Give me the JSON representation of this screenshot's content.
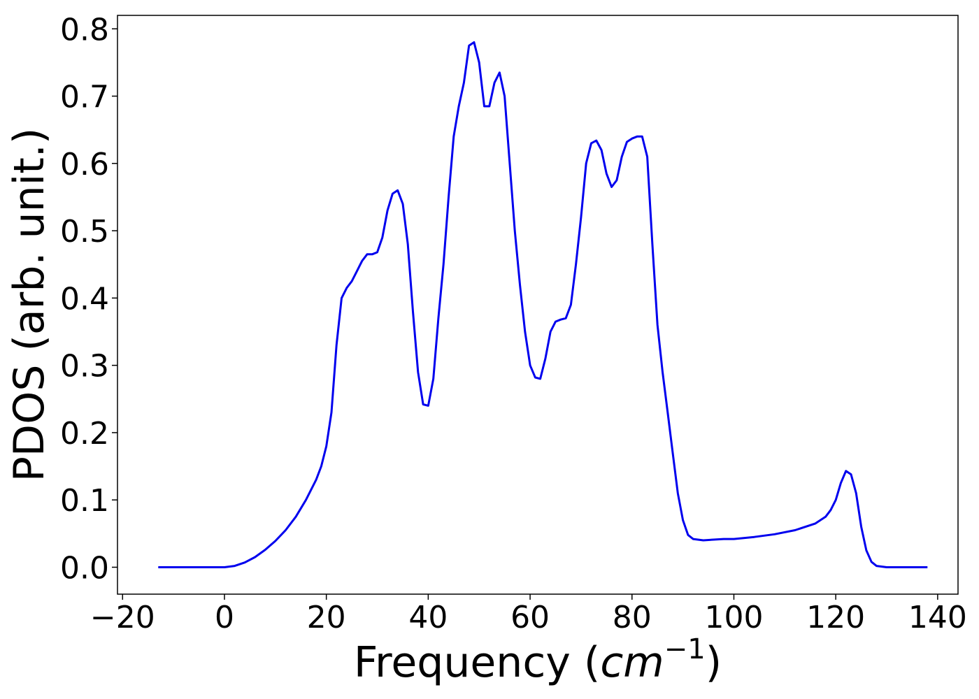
{
  "chart_data": {
    "type": "line",
    "title": "",
    "xlabel": "Frequency (",
    "xlabel_math": "cm",
    "xlabel_exponent": "−1",
    "xlabel_close": ")",
    "ylabel": "PDOS (arb. unit.)",
    "xlim": [
      -21,
      144
    ],
    "ylim": [
      -0.04,
      0.82
    ],
    "xticks": [
      -20,
      0,
      20,
      40,
      60,
      80,
      100,
      120,
      140
    ],
    "xtick_labels": [
      "−20",
      "0",
      "20",
      "40",
      "60",
      "80",
      "100",
      "120",
      "140"
    ],
    "yticks": [
      0.0,
      0.1,
      0.2,
      0.3,
      0.4,
      0.5,
      0.6,
      0.7,
      0.8
    ],
    "ytick_labels": [
      "0.0",
      "0.1",
      "0.2",
      "0.3",
      "0.4",
      "0.5",
      "0.6",
      "0.7",
      "0.8"
    ],
    "grid": false,
    "legend": "none",
    "line_color": "#0000ee",
    "series": [
      {
        "x": [
          -13,
          -5,
          0,
          2,
          4,
          6,
          8,
          10,
          12,
          14,
          16,
          18,
          19,
          20,
          21,
          22,
          23,
          24,
          25,
          26,
          27,
          28,
          29,
          30,
          31,
          32,
          33,
          34,
          35,
          36,
          37,
          38,
          39,
          40,
          41,
          42,
          43,
          44,
          45,
          46,
          47,
          48,
          49,
          50,
          51,
          52,
          53,
          54,
          55,
          56,
          57,
          58,
          59,
          60,
          61,
          62,
          63,
          64,
          65,
          66,
          67,
          68,
          69,
          70,
          71,
          72,
          73,
          74,
          75,
          76,
          77,
          78,
          79,
          80,
          81,
          82,
          83,
          84,
          85,
          86,
          87,
          88,
          89,
          90,
          91,
          92,
          94,
          96,
          98,
          100,
          104,
          108,
          112,
          116,
          118,
          119,
          120,
          121,
          122,
          123,
          124,
          125,
          126,
          127,
          128,
          130,
          138
        ],
        "y": [
          0.0,
          0.0,
          0.0,
          0.002,
          0.007,
          0.015,
          0.026,
          0.039,
          0.055,
          0.075,
          0.1,
          0.13,
          0.15,
          0.18,
          0.23,
          0.33,
          0.4,
          0.415,
          0.425,
          0.44,
          0.455,
          0.465,
          0.465,
          0.468,
          0.49,
          0.53,
          0.555,
          0.56,
          0.54,
          0.48,
          0.38,
          0.29,
          0.242,
          0.24,
          0.28,
          0.37,
          0.45,
          0.55,
          0.64,
          0.685,
          0.72,
          0.775,
          0.78,
          0.75,
          0.685,
          0.685,
          0.72,
          0.735,
          0.7,
          0.6,
          0.5,
          0.42,
          0.35,
          0.3,
          0.282,
          0.28,
          0.31,
          0.35,
          0.365,
          0.368,
          0.37,
          0.39,
          0.45,
          0.52,
          0.6,
          0.63,
          0.634,
          0.62,
          0.585,
          0.565,
          0.575,
          0.61,
          0.632,
          0.637,
          0.64,
          0.64,
          0.61,
          0.48,
          0.36,
          0.29,
          0.23,
          0.17,
          0.11,
          0.07,
          0.048,
          0.042,
          0.04,
          0.041,
          0.042,
          0.042,
          0.045,
          0.049,
          0.055,
          0.065,
          0.075,
          0.085,
          0.1,
          0.125,
          0.143,
          0.138,
          0.11,
          0.06,
          0.025,
          0.008,
          0.002,
          0.0,
          0.0
        ]
      }
    ]
  }
}
